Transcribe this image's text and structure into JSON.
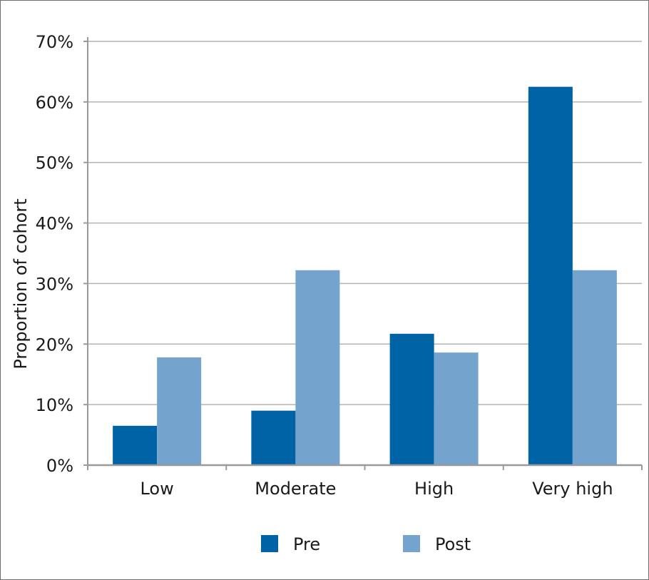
{
  "chart_data": {
    "type": "bar",
    "categories": [
      "Low",
      "Moderate",
      "High",
      "Very high"
    ],
    "series": [
      {
        "name": "Pre",
        "color": "#0063a6",
        "values": [
          6.5,
          9.0,
          21.7,
          62.5
        ]
      },
      {
        "name": "Post",
        "color": "#74a3cd",
        "values": [
          17.8,
          32.2,
          18.6,
          32.2
        ]
      }
    ],
    "title": "",
    "xlabel": "",
    "ylabel": "Proportion of cohort",
    "ylim": [
      0,
      70
    ],
    "yticks": [
      0,
      10,
      20,
      30,
      40,
      50,
      60,
      70
    ],
    "ytick_labels": [
      "0%",
      "10%",
      "20%",
      "30%",
      "40%",
      "50%",
      "60%",
      "70%"
    ],
    "grid": true,
    "legend": {
      "position": "bottom-center"
    }
  }
}
